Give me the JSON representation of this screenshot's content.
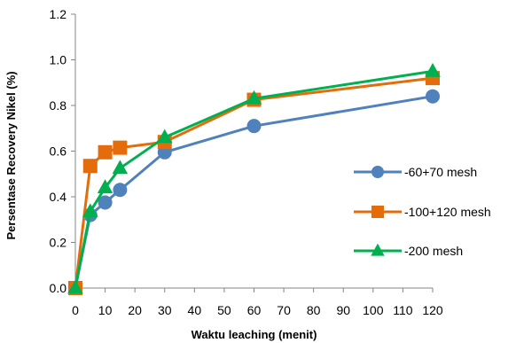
{
  "chart_data": {
    "type": "line",
    "title": "",
    "xlabel": "Waktu leaching (menit)",
    "ylabel": "Persentase Recovery Nikel (%)",
    "xlim": [
      0,
      120
    ],
    "ylim": [
      0,
      1.2
    ],
    "x_ticks": [
      0,
      10,
      20,
      30,
      40,
      50,
      60,
      70,
      80,
      90,
      100,
      110,
      120
    ],
    "y_ticks": [
      0,
      0.2,
      0.4,
      0.6,
      0.8,
      1.0,
      1.2
    ],
    "y_tick_labels": [
      "0.0",
      "0.2",
      "0.4",
      "0.6",
      "0.8",
      "1.0",
      "1.2"
    ],
    "grid": false,
    "legend_position": "right",
    "series": [
      {
        "name": "-60+70 mesh",
        "color": "#4f81bd",
        "marker": "circle",
        "x": [
          0,
          5,
          10,
          15,
          30,
          60,
          120
        ],
        "y": [
          0.0,
          0.32,
          0.375,
          0.43,
          0.595,
          0.71,
          0.84
        ]
      },
      {
        "name": "-100+120 mesh",
        "color": "#e46c0a",
        "marker": "square",
        "x": [
          0,
          5,
          10,
          15,
          30,
          60,
          120
        ],
        "y": [
          0.0,
          0.535,
          0.595,
          0.615,
          0.64,
          0.825,
          0.92
        ]
      },
      {
        "name": "-200 mesh",
        "color": "#00b050",
        "marker": "triangle",
        "x": [
          0,
          5,
          10,
          15,
          30,
          60,
          120
        ],
        "y": [
          0.0,
          0.335,
          0.44,
          0.525,
          0.66,
          0.83,
          0.95
        ]
      }
    ]
  }
}
